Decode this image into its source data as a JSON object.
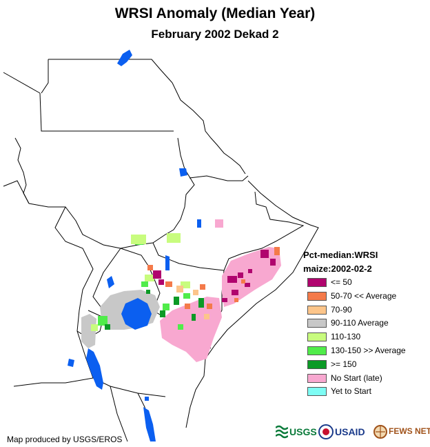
{
  "title": "WRSI Anomaly (Median Year)",
  "subtitle": "February 2002 Dekad 2",
  "legend": {
    "heading1": "Pct-median:WRSI",
    "heading2": "maize:2002-02-2",
    "items": [
      {
        "label": "<= 50",
        "color": "#b0046e"
      },
      {
        "label": "50-70 << Average",
        "color": "#f47a4a"
      },
      {
        "label": "70-90",
        "color": "#fcc58a"
      },
      {
        "label": "90-110 Average",
        "color": "#c8c8c8"
      },
      {
        "label": "110-130",
        "color": "#c8fc7e"
      },
      {
        "label": "130-150 >> Average",
        "color": "#50ec4a"
      },
      {
        "label": ">= 150",
        "color": "#0c9a26"
      },
      {
        "label": "No Start (late)",
        "color": "#f8a8d0"
      },
      {
        "label": "Yet to Start",
        "color": "#7efcf4"
      }
    ]
  },
  "credit": "Map produced by USGS/EROS",
  "logos": {
    "usgs": "USGS",
    "usaid": "USAID",
    "fewsnet": "FEWS NET"
  },
  "colors": {
    "water": "#0b5ff0",
    "border": "#000000"
  }
}
